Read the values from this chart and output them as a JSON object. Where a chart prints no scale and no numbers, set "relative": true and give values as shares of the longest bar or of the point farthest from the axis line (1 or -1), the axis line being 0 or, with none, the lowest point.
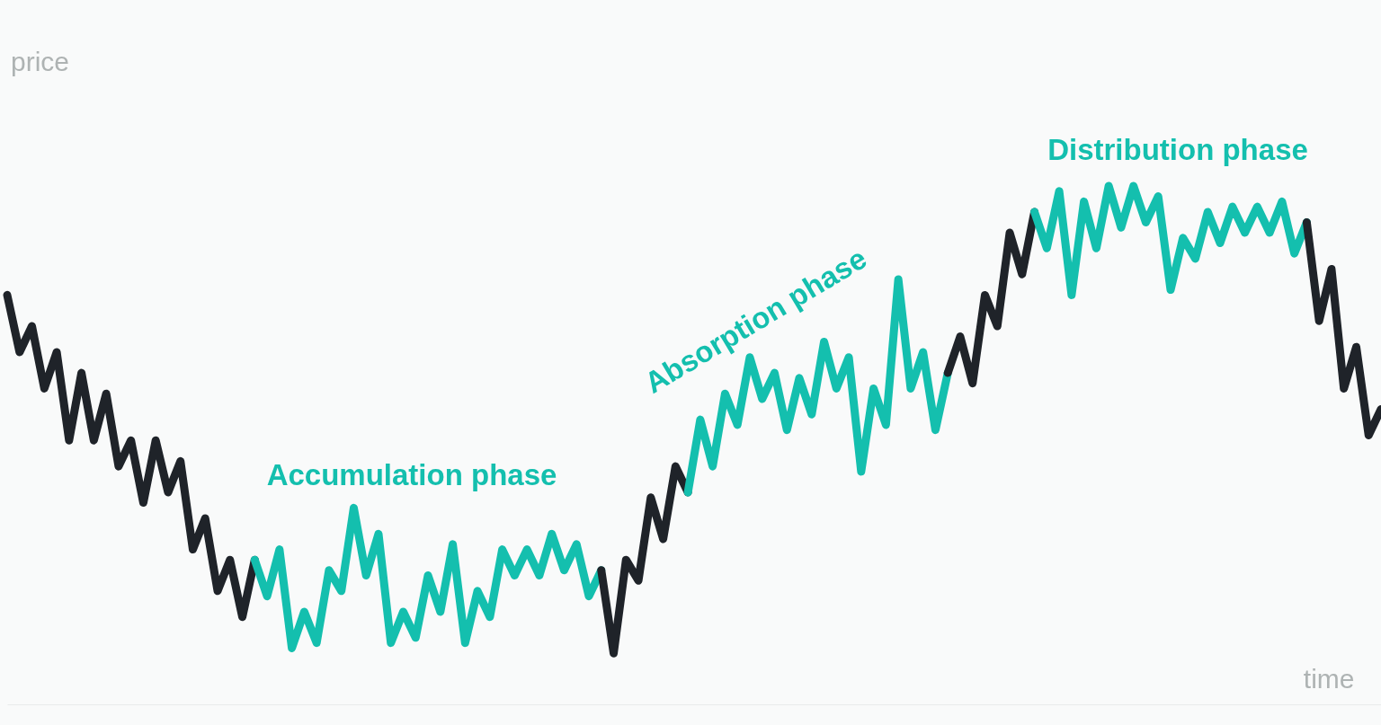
{
  "chart_data": {
    "type": "line",
    "relative": true,
    "xlabel": "time",
    "ylabel": "price",
    "marker": "none",
    "line_style": "solid",
    "annotations": [
      "Accumulation phase",
      "Absorption phase",
      "Distribution phase"
    ],
    "categories": [
      null,
      null,
      null,
      null,
      null,
      null,
      null,
      null,
      null,
      null,
      null,
      null,
      null,
      null,
      null,
      null,
      null,
      null,
      null,
      null,
      null,
      null,
      null,
      null,
      null,
      null,
      null,
      null,
      null,
      null,
      null,
      null,
      null,
      null,
      null,
      null,
      null,
      null,
      null,
      null,
      null,
      null,
      null,
      null,
      null,
      null,
      null,
      null,
      null,
      null,
      null,
      null,
      null,
      null,
      null,
      null,
      null,
      null,
      null,
      null,
      null,
      null,
      null,
      null,
      null,
      null,
      null,
      null,
      null,
      null,
      null,
      null,
      null,
      null,
      null,
      null,
      null,
      null,
      null,
      null,
      null,
      null,
      null,
      null,
      null,
      null,
      null,
      null,
      null,
      null,
      null,
      null,
      null,
      null,
      null,
      null,
      null,
      null,
      null,
      null,
      null,
      null,
      null,
      null,
      null,
      null,
      null,
      null,
      null,
      null,
      null,
      null
    ],
    "series": [
      {
        "color": "#1f2329",
        "values": [
          0.79,
          0.68,
          0.73,
          0.61,
          0.68,
          0.51,
          0.64,
          0.51,
          0.6,
          0.46,
          0.51,
          0.39,
          0.51,
          0.41,
          0.47,
          0.3,
          0.36,
          0.22,
          0.28,
          0.17,
          0.28,
          null,
          null,
          null,
          null,
          null,
          null,
          null,
          null,
          null,
          null,
          null,
          null,
          null,
          null,
          null,
          null,
          null,
          null,
          null,
          null,
          null,
          null,
          null,
          null,
          null,
          null,
          null,
          null,
          null,
          null,
          null,
          null,
          null,
          null,
          null,
          null,
          null,
          null,
          null,
          null,
          null,
          null,
          null,
          null,
          null,
          null,
          null,
          null,
          null,
          null,
          null,
          null,
          null,
          null,
          null,
          null,
          null,
          null,
          null,
          null,
          null,
          null,
          null,
          null,
          null,
          null,
          null,
          null,
          null,
          null,
          null,
          null,
          null,
          null,
          null,
          null,
          null,
          null,
          null,
          null,
          null,
          null,
          null,
          null,
          null,
          null,
          null,
          null,
          null,
          null,
          null
        ]
      },
      {
        "color": "#14bfae",
        "values": [
          null,
          null,
          null,
          null,
          null,
          null,
          null,
          null,
          null,
          null,
          null,
          null,
          null,
          null,
          null,
          null,
          null,
          null,
          null,
          null,
          0.28,
          0.21,
          0.3,
          0.11,
          0.18,
          0.12,
          0.26,
          0.22,
          0.38,
          0.25,
          0.33,
          0.12,
          0.18,
          0.13,
          0.25,
          0.18,
          0.31,
          0.12,
          0.22,
          0.17,
          0.3,
          0.25,
          0.3,
          0.25,
          0.33,
          0.26,
          0.31,
          0.21,
          0.26,
          null,
          null,
          null,
          null,
          null,
          null,
          null,
          null,
          null,
          null,
          null,
          null,
          null,
          null,
          null,
          null,
          null,
          null,
          null,
          null,
          null,
          null,
          null,
          null,
          null,
          null,
          null,
          null,
          null,
          null,
          null,
          null,
          null,
          null,
          null,
          null,
          null,
          null,
          null,
          null,
          null,
          null,
          null,
          null,
          null,
          null,
          null,
          null,
          null,
          null,
          null,
          null,
          null,
          null,
          null,
          null,
          null,
          null,
          null,
          null,
          null,
          null,
          null
        ]
      },
      {
        "color": "#1f2329",
        "values": [
          null,
          null,
          null,
          null,
          null,
          null,
          null,
          null,
          null,
          null,
          null,
          null,
          null,
          null,
          null,
          null,
          null,
          null,
          null,
          null,
          null,
          null,
          null,
          null,
          null,
          null,
          null,
          null,
          null,
          null,
          null,
          null,
          null,
          null,
          null,
          null,
          null,
          null,
          null,
          null,
          null,
          null,
          null,
          null,
          null,
          null,
          null,
          null,
          0.26,
          0.1,
          0.28,
          0.24,
          0.4,
          0.32,
          0.46,
          0.41,
          null,
          null,
          null,
          null,
          null,
          null,
          null,
          null,
          null,
          null,
          null,
          null,
          null,
          null,
          null,
          null,
          null,
          null,
          null,
          null,
          null,
          null,
          null,
          null,
          null,
          null,
          null,
          null,
          null,
          null,
          null,
          null,
          null,
          null,
          null,
          null,
          null,
          null,
          null,
          null,
          null,
          null,
          null,
          null,
          null,
          null,
          null,
          null,
          null,
          null,
          null,
          null,
          null,
          null,
          null,
          null
        ]
      },
      {
        "color": "#14bfae",
        "values": [
          null,
          null,
          null,
          null,
          null,
          null,
          null,
          null,
          null,
          null,
          null,
          null,
          null,
          null,
          null,
          null,
          null,
          null,
          null,
          null,
          null,
          null,
          null,
          null,
          null,
          null,
          null,
          null,
          null,
          null,
          null,
          null,
          null,
          null,
          null,
          null,
          null,
          null,
          null,
          null,
          null,
          null,
          null,
          null,
          null,
          null,
          null,
          null,
          null,
          null,
          null,
          null,
          null,
          null,
          null,
          0.41,
          0.55,
          0.46,
          0.6,
          0.54,
          0.67,
          0.59,
          0.64,
          0.53,
          0.63,
          0.56,
          0.7,
          0.61,
          0.67,
          0.45,
          0.61,
          0.54,
          0.82,
          0.61,
          0.68,
          0.53,
          0.64,
          null,
          null,
          null,
          null,
          null,
          null,
          null,
          null,
          null,
          null,
          null,
          null,
          null,
          null,
          null,
          null,
          null,
          null,
          null,
          null,
          null,
          null,
          null,
          null,
          null,
          null,
          null,
          null,
          null,
          null,
          null,
          null,
          null,
          null,
          null
        ]
      },
      {
        "color": "#1f2329",
        "values": [
          null,
          null,
          null,
          null,
          null,
          null,
          null,
          null,
          null,
          null,
          null,
          null,
          null,
          null,
          null,
          null,
          null,
          null,
          null,
          null,
          null,
          null,
          null,
          null,
          null,
          null,
          null,
          null,
          null,
          null,
          null,
          null,
          null,
          null,
          null,
          null,
          null,
          null,
          null,
          null,
          null,
          null,
          null,
          null,
          null,
          null,
          null,
          null,
          null,
          null,
          null,
          null,
          null,
          null,
          null,
          null,
          null,
          null,
          null,
          null,
          null,
          null,
          null,
          null,
          null,
          null,
          null,
          null,
          null,
          null,
          null,
          null,
          null,
          null,
          null,
          null,
          0.64,
          0.71,
          0.62,
          0.79,
          0.73,
          0.91,
          0.83,
          0.95,
          null,
          null,
          null,
          null,
          null,
          null,
          null,
          null,
          null,
          null,
          null,
          null,
          null,
          null,
          null,
          null,
          null,
          null,
          null,
          null,
          null,
          null,
          null,
          null,
          null,
          null,
          null,
          null
        ]
      },
      {
        "color": "#14bfae",
        "values": [
          null,
          null,
          null,
          null,
          null,
          null,
          null,
          null,
          null,
          null,
          null,
          null,
          null,
          null,
          null,
          null,
          null,
          null,
          null,
          null,
          null,
          null,
          null,
          null,
          null,
          null,
          null,
          null,
          null,
          null,
          null,
          null,
          null,
          null,
          null,
          null,
          null,
          null,
          null,
          null,
          null,
          null,
          null,
          null,
          null,
          null,
          null,
          null,
          null,
          null,
          null,
          null,
          null,
          null,
          null,
          null,
          null,
          null,
          null,
          null,
          null,
          null,
          null,
          null,
          null,
          null,
          null,
          null,
          null,
          null,
          null,
          null,
          null,
          null,
          null,
          null,
          null,
          null,
          null,
          null,
          null,
          null,
          null,
          0.95,
          0.88,
          0.99,
          0.79,
          0.97,
          0.88,
          1.0,
          0.92,
          1.0,
          0.93,
          0.98,
          0.8,
          0.9,
          0.86,
          0.95,
          0.89,
          0.96,
          0.91,
          0.96,
          0.91,
          0.97,
          0.87,
          0.93,
          null,
          null,
          null,
          null,
          null,
          null
        ]
      },
      {
        "color": "#1f2329",
        "values": [
          null,
          null,
          null,
          null,
          null,
          null,
          null,
          null,
          null,
          null,
          null,
          null,
          null,
          null,
          null,
          null,
          null,
          null,
          null,
          null,
          null,
          null,
          null,
          null,
          null,
          null,
          null,
          null,
          null,
          null,
          null,
          null,
          null,
          null,
          null,
          null,
          null,
          null,
          null,
          null,
          null,
          null,
          null,
          null,
          null,
          null,
          null,
          null,
          null,
          null,
          null,
          null,
          null,
          null,
          null,
          null,
          null,
          null,
          null,
          null,
          null,
          null,
          null,
          null,
          null,
          null,
          null,
          null,
          null,
          null,
          null,
          null,
          null,
          null,
          null,
          null,
          null,
          null,
          null,
          null,
          null,
          null,
          null,
          null,
          null,
          null,
          null,
          null,
          null,
          null,
          null,
          null,
          null,
          null,
          null,
          null,
          null,
          null,
          null,
          null,
          null,
          null,
          null,
          null,
          null,
          0.93,
          0.74,
          0.84,
          0.61,
          0.69,
          0.52,
          0.57
        ]
      }
    ]
  }
}
